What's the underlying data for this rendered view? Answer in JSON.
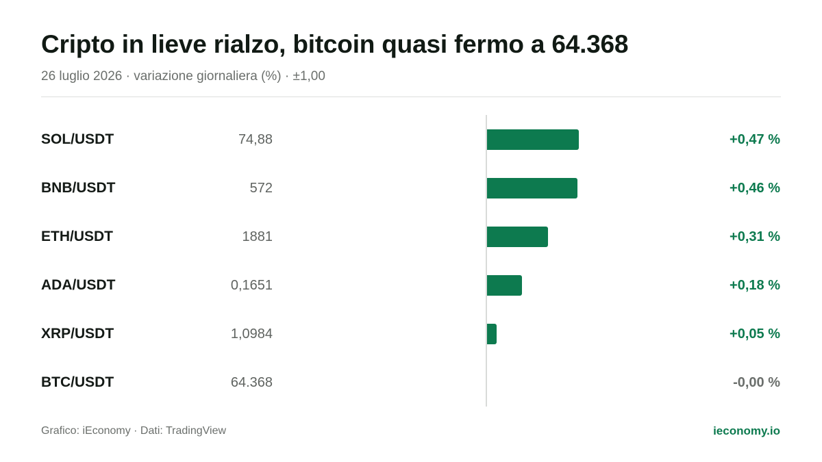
{
  "header": {
    "title": "Cripto in lieve rialzo, bitcoin quasi fermo a 64.368",
    "subtitle": "26 luglio 2026 · variazione giornaliera (%) · ±1,00"
  },
  "footer": {
    "source": "Grafico: iEconomy · Dati: TradingView",
    "brand": "ieconomy.io"
  },
  "colors": {
    "positive": "#0d7a4f",
    "neutral": "#6b6f6c"
  },
  "chart_data": {
    "type": "bar",
    "orientation": "horizontal",
    "xlim": [
      -1.0,
      1.0
    ],
    "categories": [
      "SOL/USDT",
      "BNB/USDT",
      "ETH/USDT",
      "ADA/USDT",
      "XRP/USDT",
      "BTC/USDT"
    ],
    "prices": [
      "74,88",
      "572",
      "1881",
      "0,1651",
      "1,0984",
      "64.368"
    ],
    "values": [
      0.47,
      0.46,
      0.31,
      0.18,
      0.05,
      0.0
    ],
    "change_labels": [
      "+0,47 %",
      "+0,46 %",
      "+0,31 %",
      "+0,18 %",
      "+0,05 %",
      "-0,00 %"
    ]
  }
}
